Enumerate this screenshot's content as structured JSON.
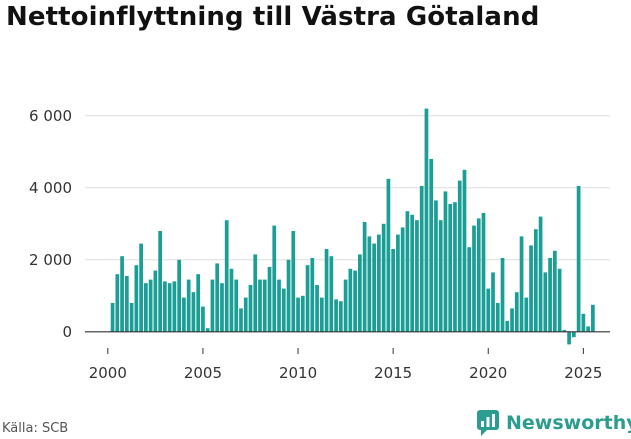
{
  "header": {
    "title": "Nettoinflyttning till Västra Götaland"
  },
  "footer": {
    "source": "Källa: SCB",
    "brand": "Newsworthy"
  },
  "colors": {
    "bar": "#1a9e95",
    "brand": "#2a9d8f",
    "grid": "#dddddd",
    "axis": "#333333"
  },
  "chart_data": {
    "type": "bar",
    "title": "Nettoinflyttning till Västra Götaland",
    "xlabel": "",
    "ylabel": "",
    "x_unit": "quarter",
    "x_start": 2000.25,
    "x_step": 0.25,
    "xlim": [
      1998.8,
      2026.4
    ],
    "ylim": [
      -450,
      6300
    ],
    "x_ticks": [
      2000,
      2005,
      2010,
      2015,
      2020,
      2025
    ],
    "x_tick_labels": [
      "2000",
      "2005",
      "2010",
      "2015",
      "2020",
      "2025"
    ],
    "y_ticks": [
      0,
      2000,
      4000,
      6000
    ],
    "y_tick_labels": [
      "0",
      "2 000",
      "4 000",
      "6 000"
    ],
    "grid": "horizontal",
    "values": [
      800,
      1600,
      2100,
      1550,
      800,
      1850,
      2450,
      1350,
      1450,
      1700,
      2800,
      1400,
      1350,
      1400,
      2000,
      950,
      1450,
      1100,
      1600,
      700,
      100,
      1450,
      1900,
      1350,
      3100,
      1750,
      1450,
      650,
      950,
      1300,
      2150,
      1450,
      1450,
      1800,
      2950,
      1450,
      1200,
      2000,
      2800,
      950,
      1000,
      1850,
      2050,
      1300,
      950,
      2300,
      2100,
      900,
      850,
      1450,
      1750,
      1700,
      2150,
      3050,
      2650,
      2450,
      2700,
      3000,
      4250,
      2300,
      2700,
      2900,
      3350,
      3250,
      3100,
      4050,
      6200,
      4800,
      3650,
      3100,
      3900,
      3550,
      3600,
      4200,
      4500,
      2350,
      2950,
      3150,
      3300,
      1200,
      1650,
      800,
      2050,
      300,
      650,
      1100,
      2650,
      950,
      2400,
      2850,
      3200,
      1650,
      2050,
      2250,
      1750,
      50,
      -350,
      -150,
      4050,
      500,
      150,
      750
    ]
  }
}
